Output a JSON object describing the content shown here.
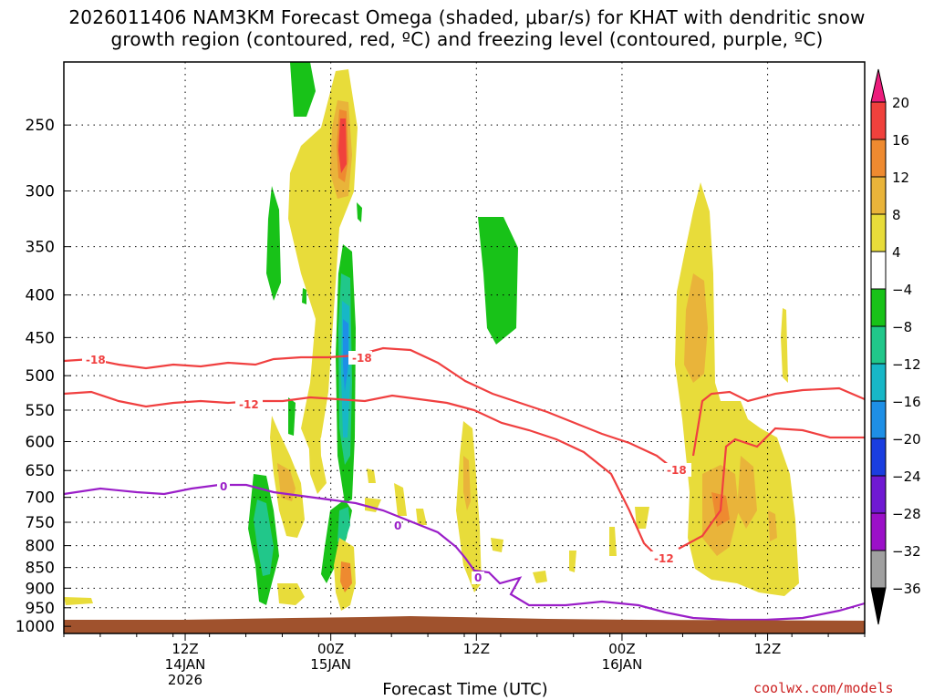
{
  "title": {
    "line1": "2026011406 NAM3KM Forecast Omega (shaded, μbar/s) for KHAT with dendritic snow",
    "line2": "growth region (contoured, red, ºC) and freezing level (contoured, purple, ºC)"
  },
  "credit": "coolwx.com/models",
  "chart_data": {
    "type": "heatmap",
    "xlabel": "Forecast Time (UTC)",
    "ylabel": "",
    "x_range": [
      "2026-01-14 01Z",
      "2026-01-16 19Z"
    ],
    "y_range_hPa": [
      1020,
      210
    ],
    "y_scale": "log",
    "grid": true,
    "y_ticks": [
      "250",
      "300",
      "350",
      "400",
      "450",
      "500",
      "550",
      "600",
      "650",
      "700",
      "750",
      "800",
      "850",
      "900",
      "950",
      "1000"
    ],
    "x_ticks": [
      {
        "line1": "12Z",
        "line2": "14JAN",
        "line3": "2026",
        "hour": 11
      },
      {
        "line1": "00Z",
        "line2": "15JAN",
        "line3": "",
        "hour": 23
      },
      {
        "line1": "12Z",
        "line2": "",
        "line3": "",
        "hour": 35
      },
      {
        "line1": "00Z",
        "line2": "16JAN",
        "line3": "",
        "hour": 47
      },
      {
        "line1": "12Z",
        "line2": "",
        "line3": "",
        "hour": 59
      }
    ],
    "colorbar": {
      "labels": [
        "20",
        "16",
        "12",
        "8",
        "4",
        "−4",
        "−8",
        "−12",
        "−16",
        "−20",
        "−24",
        "−28",
        "−32",
        "−36"
      ],
      "colors": [
        "#ec1c7c",
        "#f0413c",
        "#ee8a30",
        "#e9b43a",
        "#e8dc3a",
        "#ffffff",
        "#18c218",
        "#21c78a",
        "#17b7c7",
        "#1e8fe6",
        "#1a3ee0",
        "#6f19d2",
        "#9b10c8",
        "#a0a0a0"
      ]
    },
    "contour_labels": {
      "m18a": "-18",
      "m18b": "-18",
      "m18c": "-18",
      "m12a": "-12",
      "m12b": "-12",
      "zero_a": "0",
      "zero_b": "0",
      "zero_c": "0"
    },
    "colors": {
      "dendritic": "#f04040",
      "freezing": "#9a1ec8",
      "ground": "#a0522d"
    }
  }
}
